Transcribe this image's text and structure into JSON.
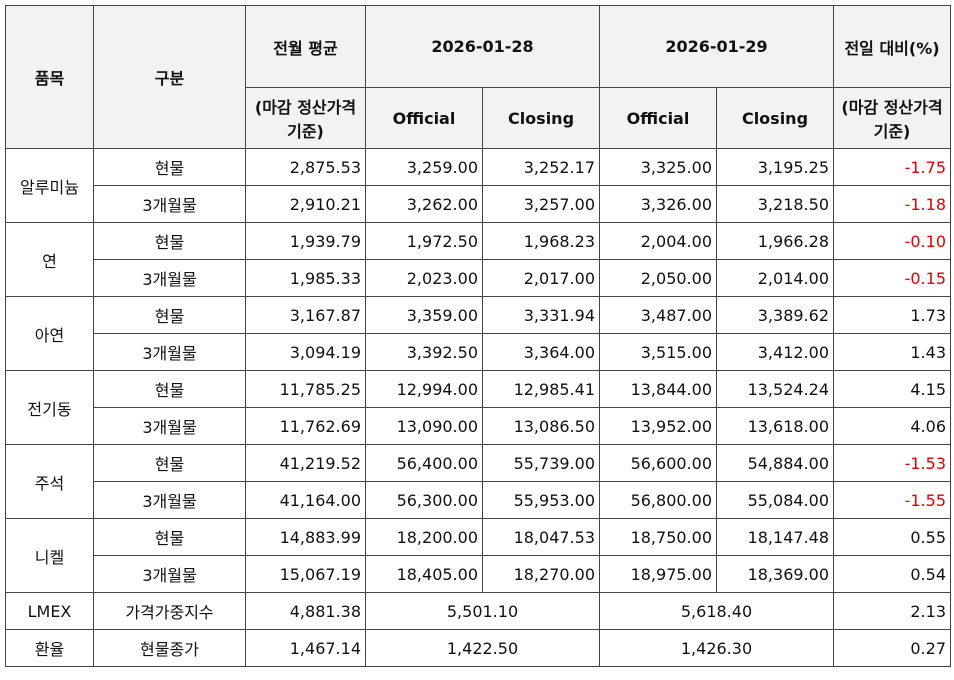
{
  "header": {
    "item": "품목",
    "category": "구분",
    "prev_avg": "전월 평균",
    "prev_avg_note": "(마감 정산가격 기준)",
    "date1": "2026-01-28",
    "date2": "2026-01-29",
    "sub_headers": [
      "Official",
      "Closing",
      "Official",
      "Closing"
    ],
    "change": "전일 대비(%)",
    "change_note": "(마감 정산가격 기준)"
  },
  "groups": [
    {
      "item": "알루미늄",
      "rows": [
        {
          "category": "현물",
          "values": [
            "2,875.53",
            "3,259.00",
            "3,252.17",
            "3,325.00",
            "3,195.25",
            "-1.75"
          ]
        },
        {
          "category": "3개월물",
          "values": [
            "2,910.21",
            "3,262.00",
            "3,257.00",
            "3,326.00",
            "3,218.50",
            "-1.18"
          ]
        }
      ]
    },
    {
      "item": "연",
      "rows": [
        {
          "category": "현물",
          "values": [
            "1,939.79",
            "1,972.50",
            "1,968.23",
            "2,004.00",
            "1,966.28",
            "-0.10"
          ]
        },
        {
          "category": "3개월물",
          "values": [
            "1,985.33",
            "2,023.00",
            "2,017.00",
            "2,050.00",
            "2,014.00",
            "-0.15"
          ]
        }
      ]
    },
    {
      "item": "아연",
      "rows": [
        {
          "category": "현물",
          "values": [
            "3,167.87",
            "3,359.00",
            "3,331.94",
            "3,487.00",
            "3,389.62",
            "1.73"
          ]
        },
        {
          "category": "3개월물",
          "values": [
            "3,094.19",
            "3,392.50",
            "3,364.00",
            "3,515.00",
            "3,412.00",
            "1.43"
          ]
        }
      ]
    },
    {
      "item": "전기동",
      "rows": [
        {
          "category": "현물",
          "values": [
            "11,785.25",
            "12,994.00",
            "12,985.41",
            "13,844.00",
            "13,524.24",
            "4.15"
          ]
        },
        {
          "category": "3개월물",
          "values": [
            "11,762.69",
            "13,090.00",
            "13,086.50",
            "13,952.00",
            "13,618.00",
            "4.06"
          ]
        }
      ]
    },
    {
      "item": "주석",
      "rows": [
        {
          "category": "현물",
          "values": [
            "41,219.52",
            "56,400.00",
            "55,739.00",
            "56,600.00",
            "54,884.00",
            "-1.53"
          ]
        },
        {
          "category": "3개월물",
          "values": [
            "41,164.00",
            "56,300.00",
            "55,953.00",
            "56,800.00",
            "55,084.00",
            "-1.55"
          ]
        }
      ]
    },
    {
      "item": "니켈",
      "rows": [
        {
          "category": "현물",
          "values": [
            "14,883.99",
            "18,200.00",
            "18,047.53",
            "18,750.00",
            "18,147.48",
            "0.55"
          ]
        },
        {
          "category": "3개월물",
          "values": [
            "15,067.19",
            "18,405.00",
            "18,270.00",
            "18,975.00",
            "18,369.00",
            "0.54"
          ]
        }
      ]
    },
    {
      "item": "LMEX",
      "rows": [
        {
          "category": "가격가중지수",
          "values": [
            "4,881.38",
            "5,501.10",
            "5,618.40",
            "2.13"
          ]
        }
      ]
    },
    {
      "item": "환율",
      "rows": [
        {
          "category": "현물종가",
          "values": [
            "1,467.14",
            "1,422.50",
            "1,426.30",
            "0.27"
          ]
        }
      ]
    }
  ]
}
